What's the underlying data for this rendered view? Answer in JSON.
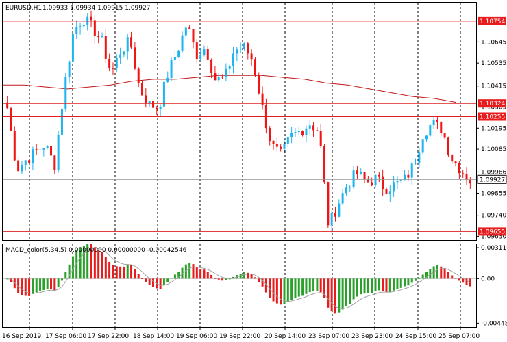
{
  "header": {
    "symbol_text": "EURUSD,H1",
    "ohlc_text": "1.09933 1.09934 1.09915 1.09927",
    "macd_text": "MACD_color(5,34,5) 0.00000000 0.00000000 -0.00042546"
  },
  "colors": {
    "bull": "#1EB4F0",
    "bear": "#F01414",
    "ma": "#C01818",
    "level_line": "#E02020",
    "level_fill": "#E81C1C",
    "hist_up": "#2AA02A",
    "hist_down": "#E81C1C",
    "signal": "#A0A0A0",
    "grid": "#000000",
    "price_line": "#909898",
    "current_fill": "#ffffff",
    "current_text": "#000000"
  },
  "price_axis": {
    "labels": [
      "1.10645",
      "1.10535",
      "1.10415",
      "1.10305",
      "1.10195",
      "1.10085",
      "1.09966",
      "1.09855",
      "1.09740",
      "1.09630"
    ]
  },
  "levels": [
    {
      "value": 1.10754,
      "label": "1.10754"
    },
    {
      "value": 1.10324,
      "label": "1.10324"
    },
    {
      "value": 1.10255,
      "label": "1.10255"
    },
    {
      "value": 1.09655,
      "label": "1.09655"
    }
  ],
  "current_price": {
    "value": 1.09927,
    "label": "1.09927"
  },
  "macd_axis": {
    "labels": [
      "0.0031196",
      "0.00",
      "-0.00448"
    ]
  },
  "time_axis": {
    "labels": [
      "16 Sep 2019",
      "17 Sep 06:00",
      "17 Sep 22:00",
      "18 Sep 14:00",
      "19 Sep 06:00",
      "19 Sep 22:00",
      "20 Sep 14:00",
      "23 Sep 07:00",
      "23 Sep 23:00",
      "24 Sep 15:00",
      "25 Sep 07:00"
    ]
  },
  "chart_data": {
    "type": "candlestick",
    "symbol": "EURUSD",
    "timeframe": "H1",
    "y_range": [
      1.0961,
      1.1085
    ],
    "macd_range": [
      -0.0048,
      0.0034
    ],
    "price_path": [
      1.103,
      1.0998,
      1.1003,
      1.1007,
      1.1011,
      1.1,
      1.104,
      1.107,
      1.1077,
      1.1072,
      1.1065,
      1.1048,
      1.106,
      1.1065,
      1.104,
      1.1032,
      1.103,
      1.1048,
      1.106,
      1.1074,
      1.1058,
      1.1062,
      1.1045,
      1.1045,
      1.106,
      1.1062,
      1.1055,
      1.103,
      1.101,
      1.1005,
      1.1015,
      1.1018,
      1.1022,
      1.1018,
      1.0968,
      1.098,
      1.099,
      1.0996,
      1.0991,
      1.0993,
      1.0988,
      1.099,
      1.0992,
      1.1,
      1.1017,
      1.1022,
      1.1019,
      1.1004,
      1.0998,
      1.0992
    ],
    "ma_path": [
      1.1042,
      1.1042,
      1.1041,
      1.104,
      1.1041,
      1.1042,
      1.1044,
      1.1045,
      1.1045,
      1.1046,
      1.1047,
      1.1047,
      1.1047,
      1.1046,
      1.1045,
      1.1043,
      1.1042,
      1.104,
      1.1038,
      1.1036,
      1.1035,
      1.1033
    ]
  }
}
